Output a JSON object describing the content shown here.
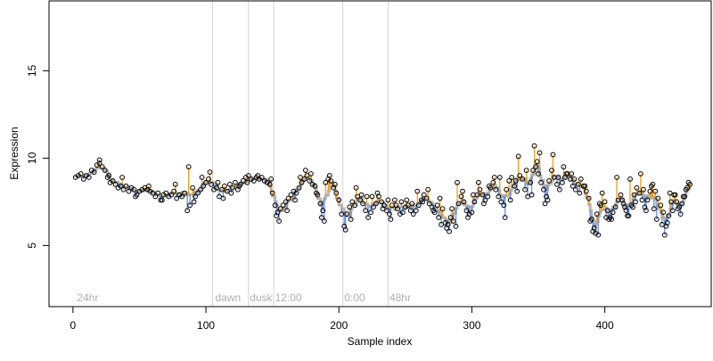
{
  "chart_data": {
    "type": "scatter",
    "title": "",
    "xlabel": "Sample index",
    "ylabel": "Expression",
    "xlim": [
      -18,
      480
    ],
    "ylim": [
      1.5,
      19
    ],
    "x_ticks": [
      0,
      100,
      200,
      300,
      400
    ],
    "y_ticks": [
      5,
      10,
      15
    ],
    "grid": false,
    "colors": {
      "up": "#f0a020",
      "down": "#6a8fd8",
      "fit": "#b3b3b3",
      "vlines": "#d3d3d3",
      "phase_text": "#b0b0b0"
    },
    "phase_lines": [
      105,
      132,
      151,
      203,
      237
    ],
    "phase_labels": [
      {
        "text": "24hr",
        "x": 3
      },
      {
        "text": "dawn",
        "x": 107
      },
      {
        "text": "dusk",
        "x": 133
      },
      {
        "text": "12:00",
        "x": 152
      },
      {
        "text": "0:00",
        "x": 204
      },
      {
        "text": "48hr",
        "x": 238
      }
    ],
    "points": [
      [
        2,
        8.9
      ],
      [
        4,
        9.0
      ],
      [
        6,
        9.1
      ],
      [
        8,
        8.8
      ],
      [
        10,
        9.0
      ],
      [
        12,
        8.9
      ],
      [
        14,
        9.3
      ],
      [
        16,
        9.2
      ],
      [
        18,
        9.6
      ],
      [
        20,
        9.7
      ],
      [
        22,
        9.5
      ],
      [
        24,
        9.3
      ],
      [
        26,
        8.9
      ],
      [
        28,
        8.6
      ],
      [
        30,
        8.7
      ],
      [
        32,
        8.5
      ],
      [
        34,
        8.3
      ],
      [
        36,
        8.4
      ],
      [
        38,
        8.2
      ],
      [
        40,
        8.4
      ],
      [
        42,
        8.1
      ],
      [
        44,
        8.3
      ],
      [
        46,
        8.2
      ],
      [
        48,
        7.9
      ],
      [
        50,
        8.1
      ],
      [
        52,
        8.2
      ],
      [
        54,
        8.3
      ],
      [
        56,
        8.2
      ],
      [
        58,
        8.1
      ],
      [
        60,
        8.0
      ],
      [
        62,
        7.8
      ],
      [
        64,
        8.0
      ],
      [
        66,
        7.6
      ],
      [
        68,
        7.9
      ],
      [
        70,
        8.0
      ],
      [
        72,
        7.8
      ],
      [
        74,
        7.9
      ],
      [
        76,
        8.1
      ],
      [
        78,
        7.7
      ],
      [
        80,
        7.9
      ],
      [
        82,
        7.8
      ],
      [
        84,
        8.0
      ],
      [
        86,
        7.0
      ],
      [
        88,
        7.3
      ],
      [
        90,
        8.3
      ],
      [
        92,
        7.8
      ],
      [
        94,
        8.0
      ],
      [
        96,
        8.2
      ],
      [
        98,
        8.4
      ],
      [
        100,
        8.6
      ],
      [
        102,
        8.8
      ],
      [
        104,
        8.5
      ],
      [
        106,
        8.2
      ],
      [
        108,
        8.3
      ],
      [
        110,
        7.8
      ],
      [
        112,
        8.2
      ],
      [
        114,
        8.4
      ],
      [
        116,
        8.1
      ],
      [
        118,
        8.5
      ],
      [
        120,
        8.3
      ],
      [
        122,
        8.6
      ],
      [
        124,
        8.2
      ],
      [
        126,
        8.5
      ],
      [
        128,
        8.7
      ],
      [
        130,
        8.9
      ],
      [
        132,
        9.0
      ],
      [
        134,
        8.8
      ],
      [
        136,
        8.7
      ],
      [
        138,
        8.9
      ],
      [
        140,
        8.8
      ],
      [
        142,
        8.9
      ],
      [
        144,
        8.7
      ],
      [
        146,
        8.6
      ],
      [
        148,
        8.5
      ],
      [
        150,
        8.0
      ],
      [
        152,
        7.3
      ],
      [
        154,
        6.9
      ],
      [
        156,
        7.1
      ],
      [
        158,
        7.3
      ],
      [
        160,
        7.5
      ],
      [
        162,
        7.7
      ],
      [
        164,
        7.9
      ],
      [
        166,
        8.1
      ],
      [
        168,
        8.0
      ],
      [
        170,
        8.3
      ],
      [
        172,
        8.6
      ],
      [
        174,
        8.8
      ],
      [
        176,
        9.0
      ],
      [
        178,
        8.7
      ],
      [
        180,
        8.5
      ],
      [
        182,
        8.4
      ],
      [
        184,
        7.9
      ],
      [
        186,
        7.4
      ],
      [
        188,
        7.0
      ],
      [
        190,
        8.6
      ],
      [
        192,
        8.8
      ],
      [
        194,
        8.7
      ],
      [
        196,
        8.3
      ],
      [
        198,
        8.0
      ],
      [
        200,
        7.6
      ],
      [
        202,
        6.8
      ],
      [
        204,
        6.1
      ],
      [
        206,
        6.8
      ],
      [
        208,
        7.2
      ],
      [
        210,
        7.5
      ],
      [
        212,
        7.3
      ],
      [
        214,
        7.8
      ],
      [
        216,
        7.6
      ],
      [
        218,
        7.4
      ],
      [
        220,
        7.0
      ],
      [
        222,
        6.6
      ],
      [
        224,
        6.9
      ],
      [
        226,
        7.2
      ],
      [
        228,
        7.4
      ],
      [
        230,
        7.8
      ],
      [
        232,
        7.5
      ],
      [
        234,
        7.3
      ],
      [
        236,
        7.0
      ],
      [
        238,
        6.8
      ],
      [
        240,
        7.3
      ],
      [
        242,
        7.6
      ],
      [
        244,
        7.1
      ],
      [
        246,
        6.8
      ],
      [
        248,
        6.9
      ],
      [
        250,
        7.2
      ],
      [
        252,
        7.3
      ],
      [
        254,
        7.0
      ],
      [
        256,
        6.8
      ],
      [
        258,
        7.0
      ],
      [
        260,
        7.3
      ],
      [
        262,
        7.6
      ],
      [
        264,
        7.9
      ],
      [
        266,
        7.7
      ],
      [
        268,
        7.4
      ],
      [
        270,
        7.2
      ],
      [
        272,
        6.9
      ],
      [
        274,
        7.3
      ],
      [
        276,
        7.7
      ],
      [
        278,
        7.1
      ],
      [
        280,
        6.3
      ],
      [
        282,
        6.2
      ],
      [
        284,
        6.6
      ],
      [
        286,
        6.4
      ],
      [
        288,
        6.1
      ],
      [
        290,
        7.4
      ],
      [
        292,
        7.8
      ],
      [
        294,
        7.5
      ],
      [
        296,
        7.0
      ],
      [
        298,
        6.8
      ],
      [
        300,
        6.9
      ],
      [
        302,
        7.5
      ],
      [
        304,
        7.9
      ],
      [
        306,
        8.2
      ],
      [
        308,
        7.9
      ],
      [
        310,
        7.6
      ],
      [
        312,
        7.8
      ],
      [
        314,
        8.3
      ],
      [
        316,
        8.6
      ],
      [
        318,
        8.2
      ],
      [
        320,
        7.8
      ],
      [
        322,
        7.5
      ],
      [
        324,
        7.3
      ],
      [
        326,
        8.2
      ],
      [
        328,
        8.7
      ],
      [
        330,
        8.9
      ],
      [
        332,
        8.4
      ],
      [
        334,
        8.1
      ],
      [
        336,
        9.0
      ],
      [
        338,
        8.8
      ],
      [
        340,
        8.2
      ],
      [
        342,
        7.8
      ],
      [
        344,
        8.6
      ],
      [
        346,
        9.3
      ],
      [
        348,
        9.5
      ],
      [
        350,
        9.1
      ],
      [
        352,
        8.6
      ],
      [
        354,
        8.2
      ],
      [
        356,
        7.8
      ],
      [
        358,
        8.7
      ],
      [
        360,
        9.3
      ],
      [
        362,
        8.9
      ],
      [
        364,
        8.5
      ],
      [
        366,
        8.2
      ],
      [
        368,
        8.6
      ],
      [
        370,
        8.9
      ],
      [
        372,
        9.1
      ],
      [
        374,
        8.8
      ],
      [
        376,
        8.4
      ],
      [
        378,
        8.2
      ],
      [
        380,
        8.5
      ],
      [
        382,
        8.8
      ],
      [
        384,
        8.4
      ],
      [
        386,
        8.1
      ],
      [
        388,
        7.7
      ],
      [
        390,
        6.5
      ],
      [
        392,
        6.0
      ],
      [
        394,
        6.8
      ],
      [
        396,
        7.4
      ],
      [
        398,
        8.0
      ],
      [
        400,
        7.5
      ],
      [
        402,
        7.0
      ],
      [
        404,
        6.6
      ],
      [
        406,
        6.9
      ],
      [
        408,
        7.2
      ],
      [
        410,
        7.6
      ],
      [
        412,
        7.9
      ],
      [
        414,
        7.4
      ],
      [
        416,
        7.0
      ],
      [
        418,
        6.7
      ],
      [
        420,
        7.3
      ],
      [
        422,
        7.9
      ],
      [
        424,
        8.3
      ],
      [
        426,
        8.0
      ],
      [
        428,
        7.6
      ],
      [
        430,
        7.2
      ],
      [
        432,
        7.6
      ],
      [
        434,
        8.1
      ],
      [
        436,
        8.5
      ],
      [
        438,
        8.1
      ],
      [
        440,
        7.7
      ],
      [
        442,
        7.3
      ],
      [
        444,
        6.9
      ],
      [
        446,
        6.1
      ],
      [
        448,
        6.7
      ],
      [
        450,
        7.5
      ],
      [
        452,
        7.9
      ],
      [
        454,
        7.5
      ],
      [
        456,
        7.2
      ],
      [
        458,
        7.4
      ],
      [
        460,
        7.8
      ],
      [
        462,
        8.3
      ],
      [
        464,
        8.5
      ],
      [
        20,
        9.9
      ],
      [
        27,
        9.0
      ],
      [
        37,
        8.9
      ],
      [
        47,
        7.8
      ],
      [
        57,
        8.4
      ],
      [
        67,
        7.6
      ],
      [
        77,
        8.5
      ],
      [
        87,
        9.5
      ],
      [
        91,
        7.5
      ],
      [
        97,
        8.9
      ],
      [
        103,
        9.2
      ],
      [
        109,
        8.6
      ],
      [
        113,
        7.7
      ],
      [
        119,
        8.0
      ],
      [
        125,
        8.4
      ],
      [
        131,
        8.6
      ],
      [
        139,
        9.0
      ],
      [
        149,
        8.8
      ],
      [
        153,
        6.7
      ],
      [
        155,
        6.4
      ],
      [
        161,
        7.0
      ],
      [
        167,
        7.6
      ],
      [
        171,
        8.9
      ],
      [
        175,
        9.3
      ],
      [
        179,
        9.1
      ],
      [
        183,
        8.0
      ],
      [
        187,
        6.6
      ],
      [
        189,
        6.4
      ],
      [
        193,
        9.0
      ],
      [
        197,
        8.5
      ],
      [
        205,
        5.9
      ],
      [
        209,
        6.5
      ],
      [
        213,
        8.3
      ],
      [
        217,
        7.9
      ],
      [
        221,
        7.8
      ],
      [
        225,
        7.8
      ],
      [
        229,
        8.0
      ],
      [
        233,
        7.1
      ],
      [
        237,
        7.6
      ],
      [
        239,
        6.5
      ],
      [
        243,
        7.3
      ],
      [
        247,
        7.5
      ],
      [
        251,
        7.6
      ],
      [
        255,
        7.4
      ],
      [
        259,
        8.1
      ],
      [
        263,
        7.5
      ],
      [
        267,
        8.2
      ],
      [
        271,
        7.0
      ],
      [
        275,
        6.6
      ],
      [
        277,
        6.2
      ],
      [
        281,
        6.0
      ],
      [
        283,
        5.8
      ],
      [
        285,
        7.1
      ],
      [
        289,
        8.6
      ],
      [
        293,
        8.1
      ],
      [
        297,
        6.6
      ],
      [
        301,
        7.9
      ],
      [
        305,
        8.6
      ],
      [
        309,
        7.4
      ],
      [
        313,
        8.4
      ],
      [
        317,
        8.9
      ],
      [
        321,
        8.9
      ],
      [
        325,
        6.6
      ],
      [
        329,
        7.6
      ],
      [
        333,
        8.7
      ],
      [
        335,
        10.1
      ],
      [
        341,
        9.3
      ],
      [
        345,
        7.9
      ],
      [
        347,
        10.7
      ],
      [
        349,
        9.8
      ],
      [
        351,
        10.3
      ],
      [
        355,
        7.4
      ],
      [
        357,
        7.6
      ],
      [
        361,
        10.2
      ],
      [
        365,
        8.9
      ],
      [
        369,
        9.5
      ],
      [
        371,
        9.1
      ],
      [
        375,
        9.1
      ],
      [
        377,
        8.8
      ],
      [
        381,
        8.0
      ],
      [
        385,
        8.4
      ],
      [
        389,
        6.4
      ],
      [
        391,
        5.8
      ],
      [
        393,
        5.7
      ],
      [
        395,
        5.6
      ],
      [
        397,
        7.3
      ],
      [
        401,
        6.6
      ],
      [
        403,
        6.5
      ],
      [
        405,
        6.5
      ],
      [
        409,
        8.9
      ],
      [
        413,
        7.6
      ],
      [
        415,
        7.2
      ],
      [
        417,
        6.7
      ],
      [
        419,
        8.8
      ],
      [
        421,
        7.2
      ],
      [
        423,
        7.5
      ],
      [
        427,
        9.1
      ],
      [
        429,
        8.2
      ],
      [
        431,
        7.0
      ],
      [
        435,
        8.4
      ],
      [
        437,
        7.1
      ],
      [
        439,
        6.5
      ],
      [
        443,
        6.2
      ],
      [
        445,
        5.6
      ],
      [
        447,
        6.3
      ],
      [
        449,
        8.0
      ],
      [
        451,
        7.0
      ],
      [
        453,
        7.9
      ],
      [
        455,
        7.1
      ],
      [
        457,
        6.8
      ],
      [
        459,
        7.8
      ],
      [
        461,
        8.2
      ],
      [
        463,
        8.6
      ]
    ]
  }
}
